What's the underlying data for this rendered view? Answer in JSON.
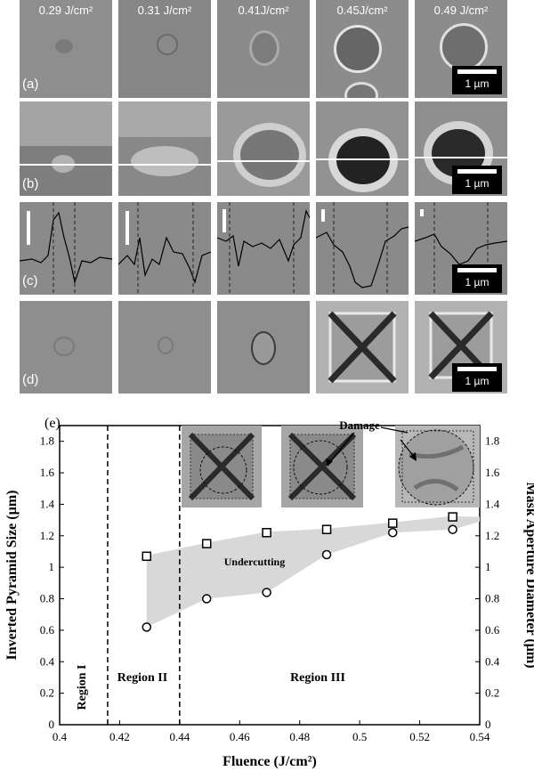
{
  "figure": {
    "column_labels": [
      "0.29 J/cm²",
      "0.31 J/cm²",
      "0.41J/cm²",
      "0.45J/cm²",
      "0.49 J/cm²"
    ],
    "row_labels": [
      "(a)",
      "(b)",
      "(c)",
      "(d)"
    ],
    "scale_bar_label": "1 µm",
    "panel_e_label": "(e)"
  },
  "chart_data": {
    "type": "scatter",
    "xlabel": "Fluence (J/cm²)",
    "ylabel_left": "Inverted Pyramid Size (µm)",
    "ylabel_right": "Mask Aperture Diameter (µm)",
    "xlim": [
      0.4,
      0.54
    ],
    "ylim": [
      0,
      1.9
    ],
    "x_ticks": [
      "0.4",
      "0.42",
      "0.44",
      "0.46",
      "0.48",
      "0.5",
      "0.52",
      "0.54"
    ],
    "y_ticks": [
      "0",
      "0.2",
      "0.4",
      "0.6",
      "0.8",
      "1",
      "1.2",
      "1.4",
      "1.6",
      "1.8"
    ],
    "series": [
      {
        "marker": "square",
        "x": [
          0.429,
          0.449,
          0.469,
          0.489,
          0.511,
          0.531
        ],
        "y": [
          1.07,
          1.15,
          1.22,
          1.24,
          1.28,
          1.32
        ]
      },
      {
        "marker": "circle",
        "x": [
          0.429,
          0.449,
          0.469,
          0.489,
          0.511,
          0.531
        ],
        "y": [
          0.62,
          0.8,
          0.84,
          1.08,
          1.22,
          1.24
        ]
      }
    ],
    "region_boundaries": [
      0.416,
      0.44
    ],
    "region_labels": [
      "Region I",
      "Region II",
      "Region III"
    ],
    "annotations": {
      "undercutting": "Undercutting",
      "damage": "Damage"
    }
  }
}
